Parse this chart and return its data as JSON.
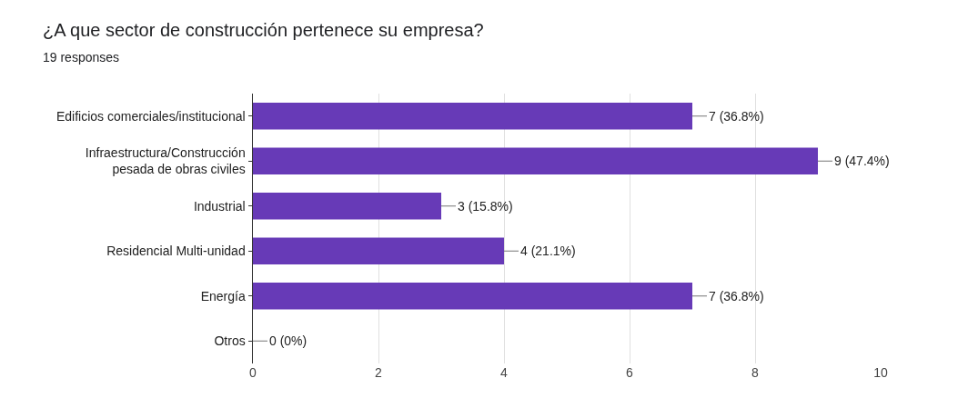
{
  "chart_data": {
    "type": "bar",
    "orientation": "horizontal",
    "title": "¿A que sector de construcción pertenece su empresa?",
    "subtitle": "19 responses",
    "categories": [
      "Edificios comerciales/institucional",
      "Infraestructura/Construcción pesada de obras civiles",
      "Industrial",
      "Residencial Multi-unidad",
      "Energía",
      "Otros"
    ],
    "values": [
      7,
      9,
      3,
      4,
      7,
      0
    ],
    "value_labels": [
      "7 (36.8%)",
      "9 (47.4%)",
      "3 (15.8%)",
      "4 (21.1%)",
      "7 (36.8%)",
      "0 (0%)"
    ],
    "color": "#673ab7",
    "xlim": [
      0,
      10
    ],
    "xticks": [
      0,
      2,
      4,
      6,
      8,
      10
    ],
    "grid": "x"
  }
}
